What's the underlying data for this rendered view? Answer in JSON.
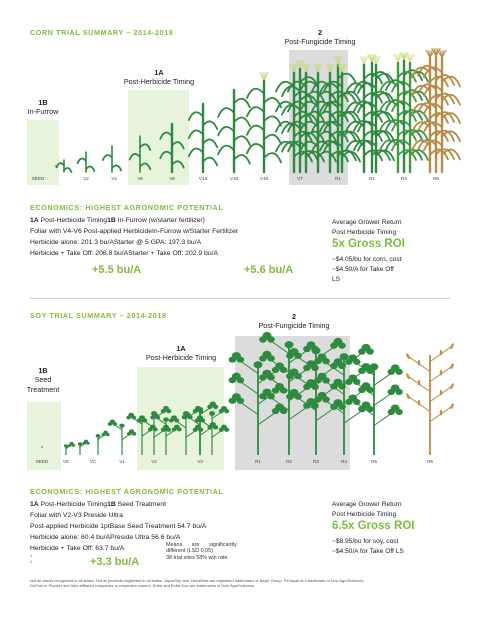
{
  "corn": {
    "title": "CORN TRIAL SUMMARY – 2014-2018",
    "timing_1b_num": "1B",
    "timing_1b_label": "In-Furrow",
    "timing_1a_num": "1A",
    "timing_1a_label": "Post-Herbicide Timing",
    "timing_2_num": "2",
    "timing_2_label": "Post-Fungicide Timing",
    "stages": [
      "SEED",
      "V2",
      "V4",
      "V6",
      "V8",
      "V13",
      "V16",
      "V18",
      "VT",
      "R1",
      "R1",
      "R4",
      "R6"
    ]
  },
  "corn_econ": {
    "title": "ECONOMICS: HIGHEST AGRONOMIC POTENTIAL",
    "line1_a_bold": "1A",
    "line1_a": " Post-Herbicide Timing",
    "line1_b_bold": "1B",
    "line1_b": " In-Furrow (w/starter fertilizer)",
    "line2": "Foliar with V4-V6 Post-applied HerbicideIn-Furrow w/Starter Fertilizer",
    "line3": "Herbicide alone: 201.3 bu/AStarter @ 5 GPA: 197.3 bu/A",
    "line4": "Herbicide + Take Off: 206.8 bu/AStarter + Take Off: 202.9 bu/A",
    "gain_a": "+5.5 bu/A",
    "gain_b": "+5.6 bu/A",
    "roi_line1": "Average Grower Return",
    "roi_line2": "Post Herbicide Timing",
    "roi_value": "5x Gross ROI",
    "cost_line1": "~$4.05/bu for corn, cost",
    "cost_line2": "~$4.50/A for Take Off",
    "cost_line3": "LS"
  },
  "soy": {
    "title": "SOY TRIAL SUMMARY – 2014-2018",
    "timing_1b_num": "1B",
    "timing_1b_label1": "Seed",
    "timing_1b_label2": "Treatment",
    "timing_1a_num": "1A",
    "timing_1a_label": "Post-Herbicide Timing",
    "timing_2_num": "2",
    "timing_2_label": "Post-Fungicide Timing",
    "stages": [
      "SEED",
      "VE",
      "VC",
      "V1",
      "V2",
      "V3",
      "R1",
      "R2",
      "R3",
      "R4",
      "R5",
      "R6"
    ]
  },
  "soy_econ": {
    "title": "ECONOMICS: HIGHEST AGRONOMIC POTENTIAL",
    "line1_a_bold": "1A",
    "line1_a": " Post-Herbicide Timing",
    "line1_b_bold": "1B",
    "line1_b": " Seed Treatment",
    "line2": "Foliar with V2-V3 Preside Ultra",
    "line3": "Post-applied Herbicide 1ptBase Seed Treatment 54.7 bu/A",
    "line4": "Herbicide alone: 60.4 bu/APreside Ultra 56.6 bu/A",
    "line5": "Herbicide + Take Off: 63.7 bu/A",
    "gain_a": "+3.3 bu/A",
    "means_line1": "Means are significantly",
    "means_line2": "different (LSD 0.05)",
    "means_line3": "38 trial sites 58% win rate",
    "roi_line1": "Average Grower Return",
    "roi_line2": "Post Herbicide Timing",
    "roi_value": "6.5x Gross ROI",
    "cost_line1": "~$8.95/bu for soy, cost",
    "cost_line2": "~$4.50/A for Take Off LS"
  },
  "disclaimer_line1": "Not all claims recognized in all states. Not all products registered in all states. VaporGrip and XtendiMax are registered trademarks of Bayer Group. FeXapan is a trademark of Dow AgroSciences,",
  "disclaimer_line2": "DuPont or Pioneer and their affiliated companies or respective owners. Enlist and Enlist Duo are trademarks of Dow AgroSciences.",
  "colors": {
    "accent_green": "#7bbf3a",
    "plant_green": "#2d8a3e",
    "band_light_green": "#e8f3dc",
    "band_gray": "#dcdcdc",
    "dry_brown": "#b98a4a"
  }
}
